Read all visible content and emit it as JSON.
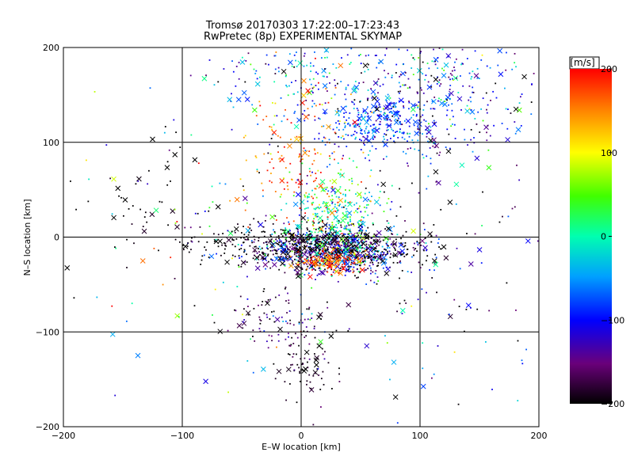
{
  "chart_data": {
    "type": "scatter",
    "title": "Tromsø 20170303 17:22:00–17:23:43",
    "subtitle": "RwPretec (8p) EXPERIMENTAL SKYMAP",
    "xlabel": "E–W location [km]",
    "ylabel": "N–S location [km]",
    "xlim": [
      -200,
      200
    ],
    "ylim": [
      -200,
      200
    ],
    "x_ticks": [
      -200,
      -100,
      0,
      100,
      200
    ],
    "y_ticks": [
      -200,
      -100,
      0,
      100,
      200
    ],
    "grid": true,
    "marker_styles": [
      "dot",
      "x"
    ],
    "colorbar": {
      "label": "[m/s]",
      "range": [
        -200,
        200
      ],
      "ticks": [
        -200,
        -100,
        0,
        100,
        200
      ],
      "colormap": "black-purple-blue-cyan-green-yellow-red"
    },
    "clusters": [
      {
        "cx": 30,
        "cy": -15,
        "sx": 35,
        "sy": 12,
        "vel": -160,
        "vel_spread": 80
      },
      {
        "cx": 25,
        "cy": -25,
        "sx": 15,
        "sy": 6,
        "vel": 170,
        "vel_spread": 40
      },
      {
        "cx": 30,
        "cy": 20,
        "sx": 20,
        "sy": 25,
        "vel": 10,
        "vel_spread": 50
      },
      {
        "cx": 65,
        "cy": 120,
        "sx": 25,
        "sy": 15,
        "vel": -80,
        "vel_spread": 30
      },
      {
        "cx": 110,
        "cy": 150,
        "sx": 45,
        "sy": 35,
        "vel": -90,
        "vel_spread": 70
      },
      {
        "cx": 0,
        "cy": 170,
        "sx": 35,
        "sy": 25,
        "vel": -70,
        "vel_spread": 60
      },
      {
        "cx": 0,
        "cy": 80,
        "sx": 25,
        "sy": 40,
        "vel": 170,
        "vel_spread": 40
      },
      {
        "cx": 5,
        "cy": -140,
        "sx": 12,
        "sy": 18,
        "vel": -190,
        "vel_spread": 20
      },
      {
        "cx": -20,
        "cy": -90,
        "sx": 20,
        "sy": 15,
        "vel": -170,
        "vel_spread": 40
      },
      {
        "cx": -130,
        "cy": 40,
        "sx": 30,
        "sy": 20,
        "vel": -200,
        "vel_spread": 10
      },
      {
        "cx": 100,
        "cy": -30,
        "sx": 60,
        "sy": 80,
        "vel": -150,
        "vel_spread": 100
      },
      {
        "cx": -60,
        "cy": 0,
        "sx": 60,
        "sy": 80,
        "vel": -100,
        "vel_spread": 150
      },
      {
        "cx": -20,
        "cy": -5,
        "sx": 45,
        "sy": 10,
        "vel": -195,
        "vel_spread": 10
      }
    ]
  }
}
